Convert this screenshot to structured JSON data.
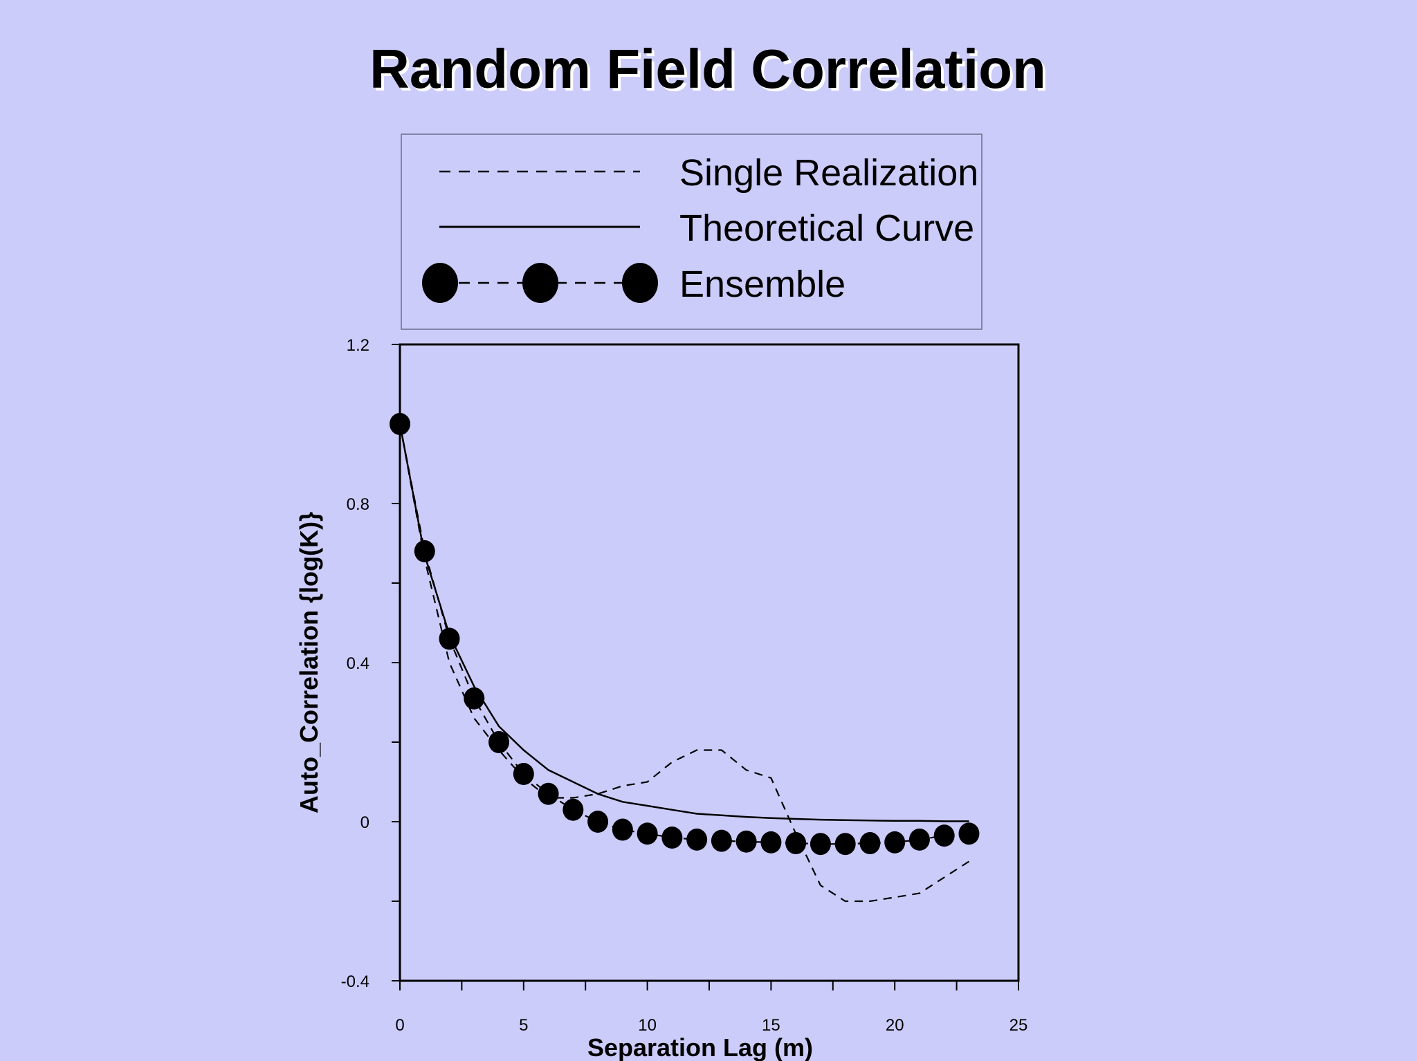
{
  "colors": {
    "background": "#ccccfa",
    "ink": "#000000",
    "legend_border": "#6b6b8a"
  },
  "chart_data": {
    "type": "line",
    "title": "Random Field Correlation",
    "xlabel": "Separation Lag (m)",
    "ylabel": "Auto_Correlation  {log(K)}",
    "xlim": [
      0,
      25
    ],
    "ylim": [
      -0.4,
      1.2
    ],
    "x_ticks": [
      "0",
      "5",
      "10",
      "15",
      "20",
      "25"
    ],
    "y_ticks": [
      "-0.4",
      "0",
      "0.4",
      "0.8",
      "1.2"
    ],
    "legend_position": "top",
    "grid": false,
    "series": [
      {
        "name": "Single Realization",
        "style": "dashed",
        "x": [
          0,
          1,
          2,
          3,
          4,
          5,
          6,
          7,
          8,
          9,
          10,
          11,
          12,
          13,
          14,
          15,
          16,
          17,
          18,
          19,
          20,
          21,
          22,
          23
        ],
        "y": [
          1.0,
          0.66,
          0.4,
          0.26,
          0.18,
          0.11,
          0.06,
          0.06,
          0.07,
          0.09,
          0.1,
          0.15,
          0.18,
          0.18,
          0.13,
          0.11,
          -0.03,
          -0.16,
          -0.2,
          -0.2,
          -0.19,
          -0.18,
          -0.14,
          -0.1
        ]
      },
      {
        "name": "Theoretical Curve",
        "style": "solid",
        "x": [
          0,
          1,
          2,
          3,
          4,
          5,
          6,
          7,
          8,
          9,
          10,
          11,
          12,
          13,
          14,
          15,
          16,
          17,
          18,
          19,
          20,
          21,
          22,
          23
        ],
        "y": [
          1.0,
          0.67,
          0.47,
          0.34,
          0.24,
          0.18,
          0.13,
          0.1,
          0.07,
          0.05,
          0.04,
          0.03,
          0.02,
          0.016,
          0.012,
          0.009,
          0.007,
          0.005,
          0.004,
          0.003,
          0.002,
          0.002,
          0.001,
          0.001
        ]
      },
      {
        "name": "Ensemble",
        "style": "dashed-markers",
        "x": [
          0,
          1,
          2,
          3,
          4,
          5,
          6,
          7,
          8,
          9,
          10,
          11,
          12,
          13,
          14,
          15,
          16,
          17,
          18,
          19,
          20,
          21,
          22,
          23
        ],
        "y": [
          1.0,
          0.68,
          0.46,
          0.31,
          0.2,
          0.12,
          0.07,
          0.03,
          0.0,
          -0.02,
          -0.03,
          -0.04,
          -0.045,
          -0.048,
          -0.05,
          -0.052,
          -0.054,
          -0.056,
          -0.056,
          -0.054,
          -0.052,
          -0.045,
          -0.035,
          -0.03
        ]
      }
    ]
  }
}
